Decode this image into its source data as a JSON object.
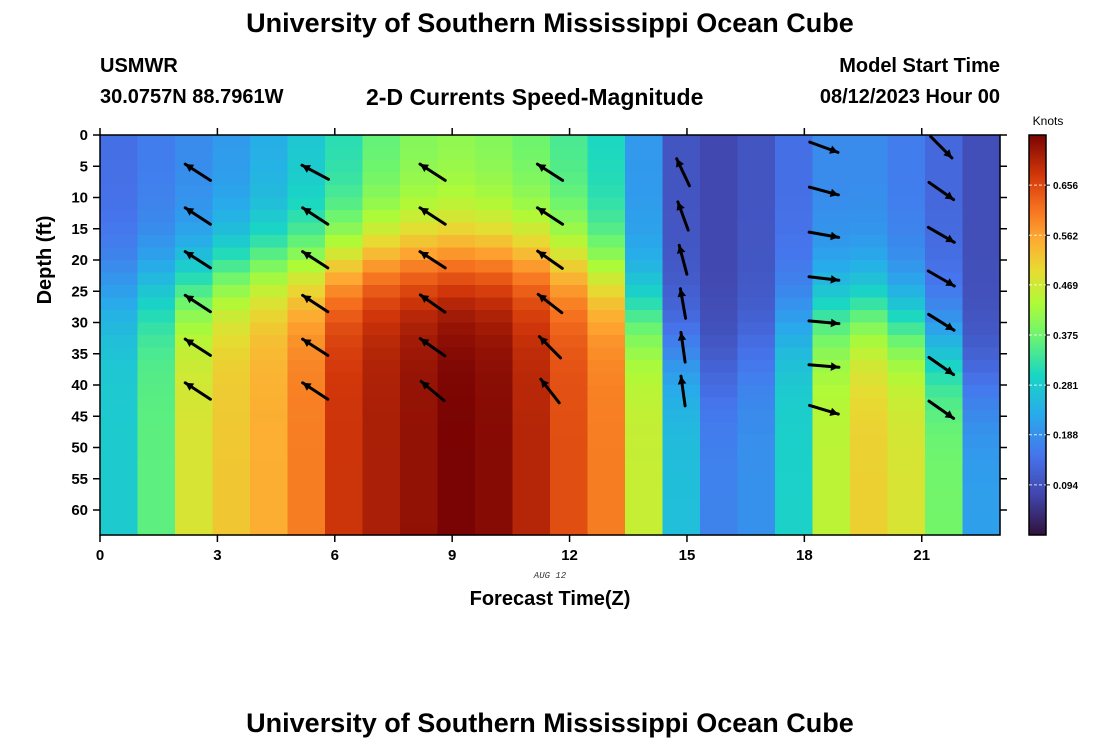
{
  "page": {
    "title": "University of Southern Mississippi Ocean Cube",
    "bottom_title": "University of Southern Mississippi Ocean Cube",
    "station": "USMWR",
    "coordinates": "30.0757N  88.7961W",
    "subtitle": "2-D Currents Speed-Magnitude",
    "model_start_label": "Model Start Time",
    "model_start_value": "08/12/2023 Hour 00"
  },
  "chart_data": {
    "type": "heatmap",
    "title": "2-D Currents Speed-Magnitude",
    "xlabel": "Forecast Time(Z)",
    "ylabel": "Depth (ft)",
    "date_label": "AUG 12",
    "x_ticks": [
      0,
      3,
      6,
      9,
      12,
      15,
      18,
      21
    ],
    "y_ticks": [
      0,
      5,
      10,
      15,
      20,
      25,
      30,
      35,
      40,
      45,
      50,
      55,
      60
    ],
    "xlim": [
      0,
      23
    ],
    "ylim": [
      0,
      64
    ],
    "y_inverted": true,
    "colorbar": {
      "label": "Knots",
      "ticks": [
        0.094,
        0.188,
        0.281,
        0.375,
        0.469,
        0.562,
        0.656
      ],
      "range": [
        0.0,
        0.75
      ]
    },
    "speed_profile": {
      "hours": [
        0,
        1,
        2,
        3,
        4,
        5,
        6,
        7,
        8,
        9,
        10,
        11,
        12,
        13,
        14,
        15,
        16,
        17,
        18,
        19,
        20,
        21,
        22,
        23
      ],
      "surface": [
        0.14,
        0.16,
        0.18,
        0.2,
        0.23,
        0.27,
        0.31,
        0.36,
        0.39,
        0.4,
        0.39,
        0.37,
        0.34,
        0.3,
        0.2,
        0.1,
        0.08,
        0.1,
        0.14,
        0.18,
        0.18,
        0.16,
        0.13,
        0.09
      ],
      "bottom": [
        0.28,
        0.36,
        0.48,
        0.52,
        0.55,
        0.6,
        0.68,
        0.71,
        0.73,
        0.75,
        0.74,
        0.7,
        0.65,
        0.6,
        0.46,
        0.26,
        0.17,
        0.19,
        0.29,
        0.45,
        0.51,
        0.48,
        0.38,
        0.21
      ],
      "transition_depth": [
        25,
        24,
        24,
        22,
        21,
        21,
        20,
        19,
        19,
        19,
        19,
        19,
        20,
        22,
        28,
        35,
        38,
        35,
        30,
        28,
        28,
        30,
        34,
        40
      ]
    },
    "vectors": {
      "hours": [
        2.5,
        5.5,
        8.5,
        11.5,
        14.9,
        18.5,
        21.5
      ],
      "depths": [
        5,
        12,
        19,
        26,
        33,
        40
      ],
      "bearings_deg": [
        [
          -57,
          -57,
          -57,
          -57,
          -57,
          -57
        ],
        [
          -62,
          -57,
          -57,
          -57,
          -57,
          -57
        ],
        [
          -57,
          -57,
          -57,
          -55,
          -55,
          -50
        ],
        [
          -57,
          -57,
          -55,
          -52,
          -45,
          -38
        ],
        [
          -25,
          -20,
          -15,
          -10,
          -8,
          -8
        ],
        [
          110,
          105,
          100,
          97,
          95,
          95,
          107
        ],
        [
          135,
          125,
          120,
          120,
          122,
          125,
          125
        ]
      ],
      "depth_lists": [
        [
          5,
          12,
          19,
          26,
          33,
          40
        ],
        [
          5,
          12,
          19,
          26,
          33,
          40
        ],
        [
          5,
          12,
          19,
          26,
          33,
          40
        ],
        [
          5,
          12,
          19,
          26,
          33,
          40
        ],
        [
          5,
          12,
          19,
          26,
          33,
          40
        ],
        [
          1,
          8,
          15,
          22,
          29,
          36,
          43
        ],
        [
          1,
          8,
          15,
          22,
          29,
          36,
          43
        ]
      ]
    },
    "grid": false,
    "legend": "colorbar-right"
  }
}
